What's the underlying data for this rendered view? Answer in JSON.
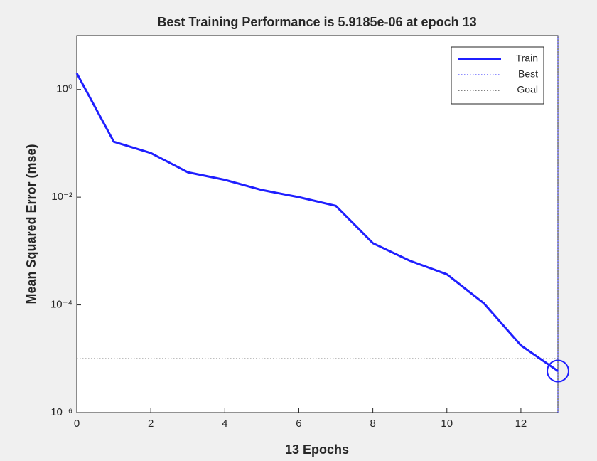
{
  "chart_data": {
    "type": "line",
    "title": "Best Training Performance is 5.9185e-06 at epoch 13",
    "xlabel": "13 Epochs",
    "ylabel": "Mean Squared Error  (mse)",
    "x": [
      0,
      1,
      2,
      3,
      4,
      5,
      6,
      7,
      8,
      9,
      10,
      11,
      12,
      13
    ],
    "series": [
      {
        "name": "Train",
        "color": "#1f1fff",
        "values": [
          2.0,
          0.107,
          0.066,
          0.029,
          0.021,
          0.0136,
          0.01,
          0.0069,
          0.0014,
          0.00066,
          0.00037,
          0.000107,
          1.77e-05,
          5.9185e-06
        ]
      }
    ],
    "best": {
      "name": "Best",
      "color": "#1f1fff",
      "x": 13,
      "y": 5.9185e-06
    },
    "goal": {
      "name": "Goal",
      "color": "#000000",
      "y": 1e-05
    },
    "xlim": [
      0,
      13
    ],
    "xticks": [
      0,
      2,
      4,
      6,
      8,
      10,
      12
    ],
    "ylim": [
      1e-06,
      10
    ],
    "ylog": true,
    "yticks": [
      {
        "value": 1e-06,
        "label": "10⁻⁶"
      },
      {
        "value": 0.0001,
        "label": "10⁻⁴"
      },
      {
        "value": 0.01,
        "label": "10⁻²"
      },
      {
        "value": 1,
        "label": "10⁰"
      }
    ],
    "legend": "upper right"
  }
}
